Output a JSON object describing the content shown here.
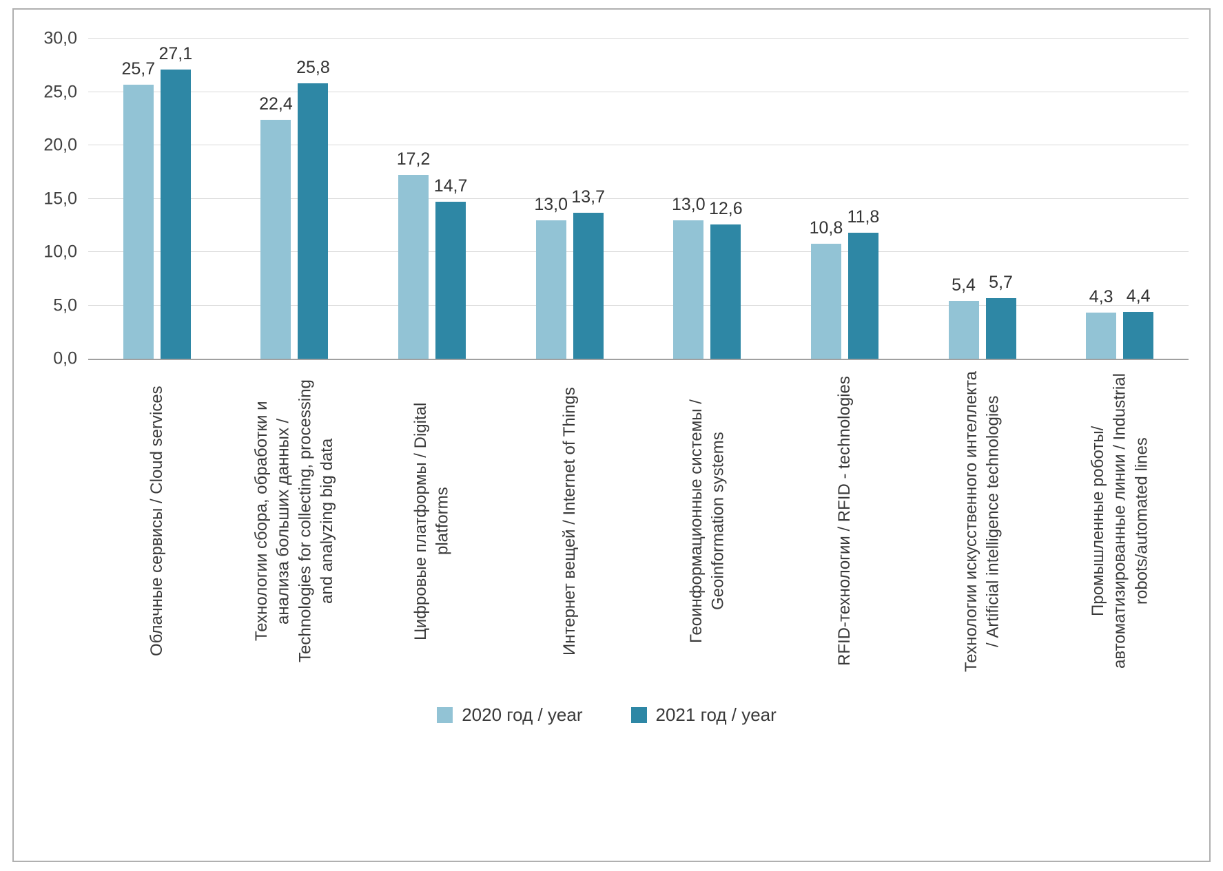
{
  "chart_data": {
    "type": "bar",
    "title": "",
    "xlabel": "",
    "ylabel": "",
    "ylim": [
      0,
      30
    ],
    "yticks": [
      "0,0",
      "5,0",
      "10,0",
      "15,0",
      "20,0",
      "25,0",
      "30,0"
    ],
    "grid": true,
    "legend_position": "bottom",
    "categories": [
      "Облачные сервисы / Cloud services",
      "Технологии сбора, обработки и анализа больших данных / Technologies for collecting, processing and analyzing big data",
      "Цифровые платформы / Digital platforms",
      "Интернет вещей / Internet of Things",
      "Геоинформационные системы / Geoinformation systems",
      "RFID-технологии / RFID - technologies",
      "Технологии искусственного интеллекта / Artificial intelligence technologies",
      "Промышленные роботы/автоматизированные линии / Industrial robots/automated lines"
    ],
    "series": [
      {
        "name": "2020 год / year",
        "color": "#92c3d5",
        "values": [
          25.7,
          22.4,
          17.2,
          13.0,
          13.0,
          10.8,
          5.4,
          4.3
        ],
        "labels": [
          "25,7",
          "22,4",
          "17,2",
          "13,0",
          "13,0",
          "10,8",
          "5,4",
          "4,3"
        ]
      },
      {
        "name": "2021 год / year",
        "color": "#2e87a5",
        "values": [
          27.1,
          25.8,
          14.7,
          13.7,
          12.6,
          11.8,
          5.7,
          4.4
        ],
        "labels": [
          "27,1",
          "25,8",
          "14,7",
          "13,7",
          "12,6",
          "11,8",
          "5,7",
          "4,4"
        ]
      }
    ]
  }
}
